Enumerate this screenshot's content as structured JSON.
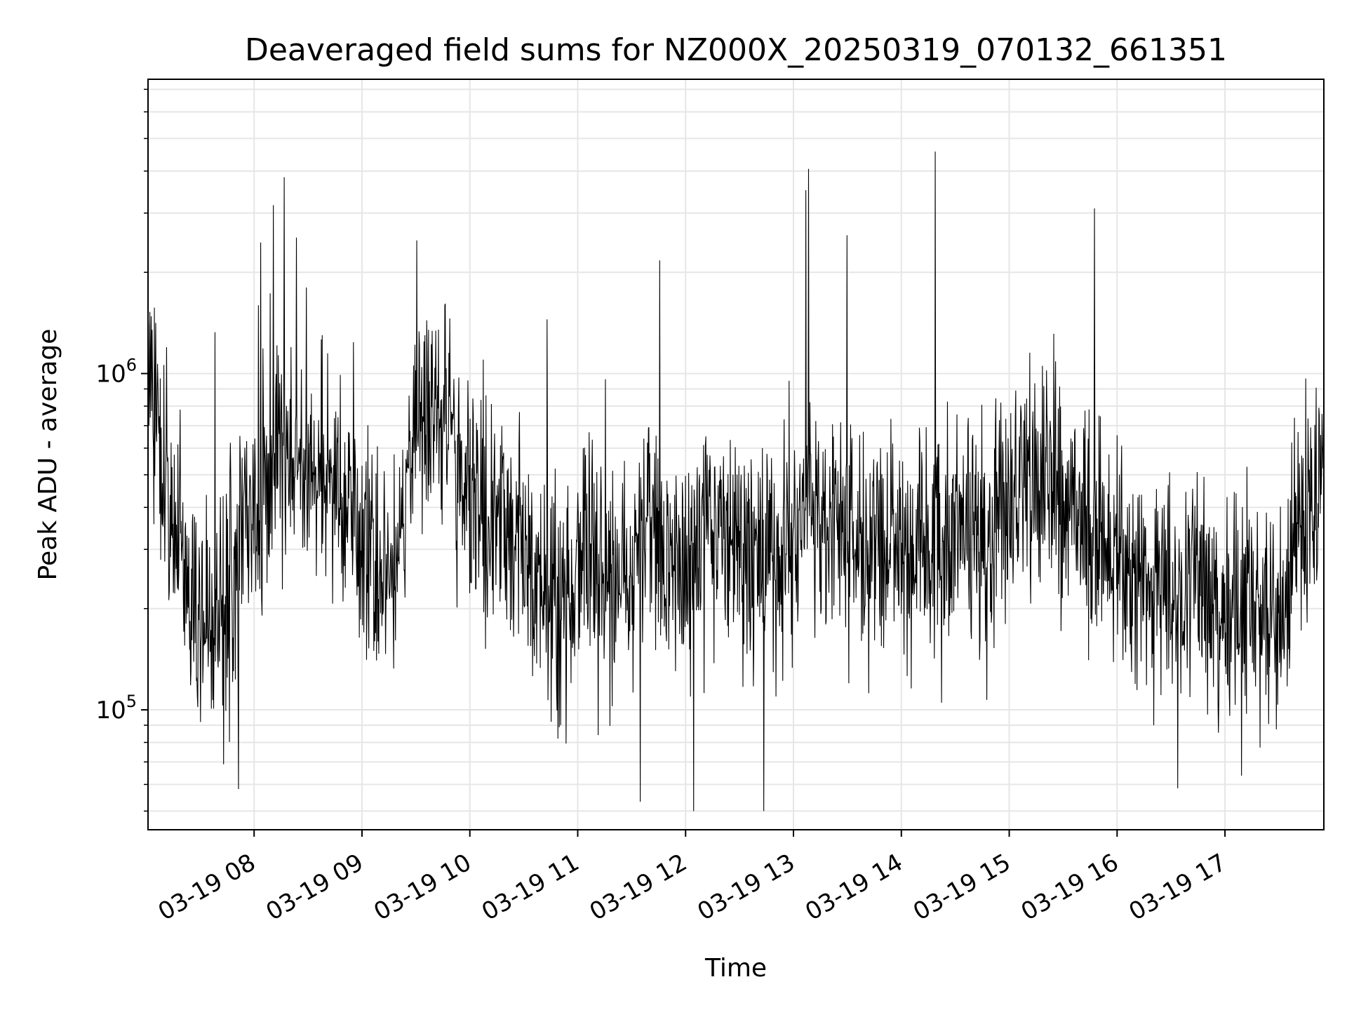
{
  "chart_data": {
    "type": "line",
    "title": "Deaveraged field sums for NZ000X_20250319_070132_661351",
    "xlabel": "Time",
    "ylabel": "Peak ADU - average",
    "yscale": "log",
    "ylim": [
      44000,
      7500000
    ],
    "xlim": [
      "2025-03-19 07:01",
      "2025-03-19 17:55"
    ],
    "grid": true,
    "line_color": "#000000",
    "grid_color": "#e6e6e6",
    "x_ticks": [
      {
        "value": "2025-03-19 08:00",
        "label": "03-19 08"
      },
      {
        "value": "2025-03-19 09:00",
        "label": "03-19 09"
      },
      {
        "value": "2025-03-19 10:00",
        "label": "03-19 10"
      },
      {
        "value": "2025-03-19 11:00",
        "label": "03-19 11"
      },
      {
        "value": "2025-03-19 12:00",
        "label": "03-19 12"
      },
      {
        "value": "2025-03-19 13:00",
        "label": "03-19 13"
      },
      {
        "value": "2025-03-19 14:00",
        "label": "03-19 14"
      },
      {
        "value": "2025-03-19 15:00",
        "label": "03-19 15"
      },
      {
        "value": "2025-03-19 16:00",
        "label": "03-19 16"
      },
      {
        "value": "2025-03-19 17:00",
        "label": "03-19 17"
      }
    ],
    "y_ticks": [
      {
        "value": 100000,
        "base": "10",
        "exp": "5"
      },
      {
        "value": 1000000,
        "base": "10",
        "exp": "6"
      }
    ],
    "series": [
      {
        "x": [
          "2025-03-19 07:01",
          "2025-03-19 07:10",
          "2025-03-19 07:20",
          "2025-03-19 07:30",
          "2025-03-19 07:40",
          "2025-03-19 07:50",
          "2025-03-19 08:00",
          "2025-03-19 08:10",
          "2025-03-19 08:20",
          "2025-03-19 08:30",
          "2025-03-19 08:40",
          "2025-03-19 08:50",
          "2025-03-19 09:00",
          "2025-03-19 09:10",
          "2025-03-19 09:20",
          "2025-03-19 09:30",
          "2025-03-19 09:40",
          "2025-03-19 09:50",
          "2025-03-19 10:00",
          "2025-03-19 10:10",
          "2025-03-19 10:20",
          "2025-03-19 10:30",
          "2025-03-19 10:40",
          "2025-03-19 10:50",
          "2025-03-19 11:00",
          "2025-03-19 11:10",
          "2025-03-19 11:20",
          "2025-03-19 11:30",
          "2025-03-19 11:40",
          "2025-03-19 11:50",
          "2025-03-19 12:00",
          "2025-03-19 12:10",
          "2025-03-19 12:20",
          "2025-03-19 12:30",
          "2025-03-19 12:40",
          "2025-03-19 12:50",
          "2025-03-19 13:00",
          "2025-03-19 13:10",
          "2025-03-19 13:20",
          "2025-03-19 13:30",
          "2025-03-19 13:40",
          "2025-03-19 13:50",
          "2025-03-19 14:00",
          "2025-03-19 14:10",
          "2025-03-19 14:20",
          "2025-03-19 14:30",
          "2025-03-19 14:40",
          "2025-03-19 14:50",
          "2025-03-19 15:00",
          "2025-03-19 15:10",
          "2025-03-19 15:20",
          "2025-03-19 15:30",
          "2025-03-19 15:40",
          "2025-03-19 15:50",
          "2025-03-19 16:00",
          "2025-03-19 16:10",
          "2025-03-19 16:20",
          "2025-03-19 16:30",
          "2025-03-19 16:40",
          "2025-03-19 16:50",
          "2025-03-19 17:00",
          "2025-03-19 17:10",
          "2025-03-19 17:20",
          "2025-03-19 17:30",
          "2025-03-19 17:40",
          "2025-03-19 17:50",
          "2025-03-19 17:55"
        ],
        "y": [
          1200000,
          500000,
          260000,
          190000,
          170000,
          280000,
          420000,
          500000,
          560000,
          520000,
          480000,
          380000,
          330000,
          260000,
          300000,
          750000,
          800000,
          650000,
          480000,
          380000,
          350000,
          300000,
          220000,
          180000,
          260000,
          310000,
          230000,
          270000,
          320000,
          330000,
          250000,
          340000,
          380000,
          320000,
          280000,
          300000,
          320000,
          420000,
          370000,
          360000,
          330000,
          310000,
          320000,
          300000,
          330000,
          320000,
          310000,
          330000,
          420000,
          440000,
          460000,
          420000,
          380000,
          300000,
          270000,
          260000,
          250000,
          230000,
          250000,
          220000,
          180000,
          190000,
          180000,
          190000,
          330000,
          430000,
          520000
        ]
      }
    ]
  }
}
